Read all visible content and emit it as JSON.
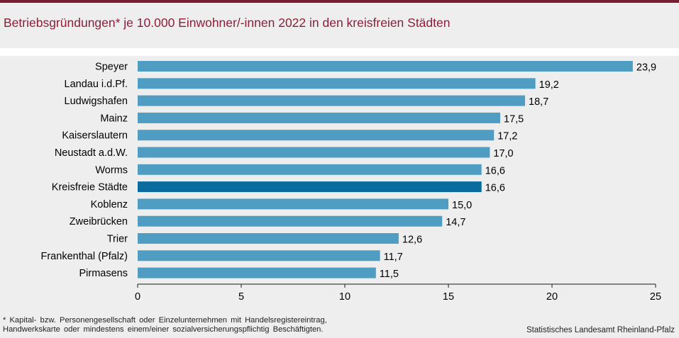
{
  "title": "Betriebsgründungen* je 10.000 Einwohner/-innen 2022 in den kreisfreien Städten",
  "footnote": {
    "line1": "* Kapital- bzw. Personengesellschaft oder Einzelunternehmen mit Handelsregistereintrag,",
    "line2": "Handwerkskarte oder mindestens einem/einer sozialversicherungspflichtig Beschäftigten."
  },
  "source": "Statistisches Landesamt Rheinland-Pfalz",
  "colors": {
    "bar": "#4f9dc2",
    "highlight": "#0a6b9e",
    "title": "#8b1f3b",
    "axis": "#1a1a1a"
  },
  "chart_data": {
    "type": "bar",
    "orientation": "horizontal",
    "categories": [
      "Speyer",
      "Landau i.d.Pf.",
      "Ludwigshafen",
      "Mainz",
      "Kaiserslautern",
      "Neustadt a.d.W.",
      "Worms",
      "Kreisfreie Städte",
      "Koblenz",
      "Zweibrücken",
      "Trier",
      "Frankenthal (Pfalz)",
      "Pirmasens"
    ],
    "values": [
      23.9,
      19.2,
      18.7,
      17.5,
      17.2,
      17.0,
      16.6,
      16.6,
      15.0,
      14.7,
      12.6,
      11.7,
      11.5
    ],
    "value_labels": [
      "23,9",
      "19,2",
      "18,7",
      "17,5",
      "17,2",
      "17,0",
      "16,6",
      "16,6",
      "15,0",
      "14,7",
      "12,6",
      "11,7",
      "11,5"
    ],
    "highlight": "Kreisfreie Städte",
    "xlim": [
      0,
      25
    ],
    "xticks": [
      0,
      5,
      10,
      15,
      20,
      25
    ],
    "xtick_labels": [
      "0",
      "5",
      "10",
      "15",
      "20",
      "25"
    ],
    "grid": false,
    "legend": "none"
  }
}
